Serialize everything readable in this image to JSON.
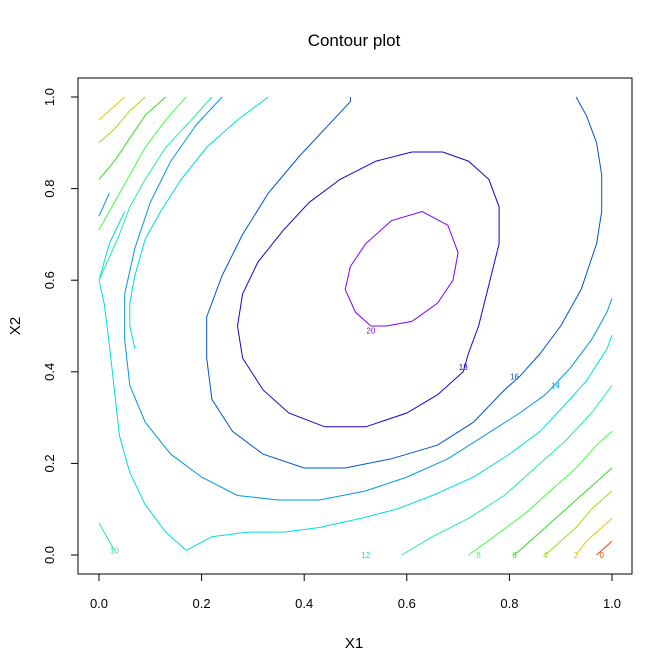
{
  "chart_data": {
    "type": "contour",
    "title": "Contour plot",
    "xlabel": "X1",
    "ylabel": "X2",
    "xlim": [
      0,
      1
    ],
    "ylim": [
      0,
      1
    ],
    "x_ticks": [
      "0.0",
      "0.2",
      "0.4",
      "0.6",
      "0.8",
      "1.0"
    ],
    "y_ticks": [
      "0.0",
      "0.2",
      "0.4",
      "0.6",
      "0.8",
      "1.0"
    ],
    "grid": false,
    "legend": "none",
    "function_note": "levels of a quadratic surface peaking near (0.6, 0.62)",
    "levels": [
      {
        "level": 20,
        "label": "20",
        "color": "#8000FF",
        "segments": [
          [
            [
              0.53,
              0.5
            ],
            [
              0.5,
              0.53
            ],
            [
              0.48,
              0.58
            ],
            [
              0.49,
              0.63
            ],
            [
              0.52,
              0.68
            ],
            [
              0.57,
              0.73
            ],
            [
              0.63,
              0.75
            ],
            [
              0.68,
              0.72
            ],
            [
              0.7,
              0.66
            ],
            [
              0.69,
              0.6
            ],
            [
              0.66,
              0.55
            ],
            [
              0.61,
              0.51
            ],
            [
              0.56,
              0.5
            ],
            [
              0.53,
              0.5
            ]
          ]
        ],
        "label_pos": [
          0.53,
          0.49
        ]
      },
      {
        "level": 18,
        "label": "18",
        "color": "#1E00CC",
        "segments": [
          [
            [
              0.71,
              0.4
            ],
            [
              0.66,
              0.35
            ],
            [
              0.6,
              0.31
            ],
            [
              0.52,
              0.28
            ],
            [
              0.44,
              0.28
            ],
            [
              0.37,
              0.31
            ],
            [
              0.32,
              0.36
            ],
            [
              0.28,
              0.43
            ],
            [
              0.27,
              0.5
            ],
            [
              0.28,
              0.57
            ],
            [
              0.31,
              0.64
            ],
            [
              0.36,
              0.71
            ],
            [
              0.41,
              0.77
            ],
            [
              0.47,
              0.82
            ],
            [
              0.54,
              0.86
            ],
            [
              0.61,
              0.88
            ],
            [
              0.67,
              0.88
            ],
            [
              0.72,
              0.86
            ],
            [
              0.76,
              0.82
            ],
            [
              0.78,
              0.76
            ],
            [
              0.78,
              0.68
            ],
            [
              0.76,
              0.59
            ],
            [
              0.74,
              0.5
            ],
            [
              0.72,
              0.44
            ],
            [
              0.71,
              0.4
            ]
          ]
        ],
        "label_pos": [
          0.71,
          0.41
        ]
      },
      {
        "level": 16,
        "label": "16",
        "color": "#0055CC",
        "segments": [
          [
            [
              0.79,
              0.36
            ],
            [
              0.73,
              0.29
            ],
            [
              0.66,
              0.24
            ],
            [
              0.57,
              0.21
            ],
            [
              0.48,
              0.19
            ],
            [
              0.4,
              0.19
            ],
            [
              0.32,
              0.22
            ],
            [
              0.26,
              0.27
            ],
            [
              0.22,
              0.34
            ],
            [
              0.21,
              0.43
            ],
            [
              0.21,
              0.52
            ],
            [
              0.24,
              0.61
            ],
            [
              0.28,
              0.7
            ],
            [
              0.33,
              0.79
            ],
            [
              0.39,
              0.87
            ],
            [
              0.44,
              0.93
            ],
            [
              0.49,
              0.99
            ],
            [
              0.49,
              1.0
            ]
          ],
          [
            [
              0.93,
              1.0
            ],
            [
              0.95,
              0.96
            ],
            [
              0.97,
              0.9
            ],
            [
              0.98,
              0.83
            ],
            [
              0.98,
              0.75
            ],
            [
              0.97,
              0.68
            ],
            [
              0.94,
              0.58
            ],
            [
              0.9,
              0.5
            ],
            [
              0.86,
              0.44
            ],
            [
              0.82,
              0.39
            ],
            [
              0.79,
              0.36
            ]
          ]
        ],
        "label_pos": [
          0.81,
          0.39
        ]
      },
      {
        "level": 14,
        "label": "14",
        "color": "#0099DD",
        "segments": [
          [
            [
              0.0,
              0.74
            ],
            [
              0.02,
              0.79
            ]
          ],
          [
            [
              0.24,
              1.0
            ],
            [
              0.19,
              0.94
            ],
            [
              0.14,
              0.86
            ],
            [
              0.1,
              0.77
            ],
            [
              0.07,
              0.67
            ],
            [
              0.05,
              0.57
            ],
            [
              0.05,
              0.47
            ],
            [
              0.06,
              0.37
            ],
            [
              0.09,
              0.29
            ],
            [
              0.14,
              0.22
            ],
            [
              0.2,
              0.17
            ],
            [
              0.27,
              0.13
            ],
            [
              0.35,
              0.12
            ],
            [
              0.43,
              0.12
            ],
            [
              0.52,
              0.14
            ],
            [
              0.6,
              0.17
            ],
            [
              0.68,
              0.21
            ],
            [
              0.75,
              0.26
            ],
            [
              0.82,
              0.31
            ],
            [
              0.87,
              0.35
            ],
            [
              0.92,
              0.41
            ],
            [
              0.96,
              0.47
            ],
            [
              0.99,
              0.53
            ],
            [
              1.0,
              0.56
            ]
          ]
        ],
        "label_pos": [
          0.89,
          0.37
        ]
      },
      {
        "level": 12,
        "label": "12",
        "color": "#00DDDD",
        "segments": [
          [
            [
              0.33,
              1.0
            ],
            [
              0.27,
              0.95
            ],
            [
              0.21,
              0.89
            ],
            [
              0.16,
              0.82
            ],
            [
              0.12,
              0.75
            ],
            [
              0.09,
              0.69
            ],
            [
              0.07,
              0.61
            ],
            [
              0.06,
              0.55
            ],
            [
              0.06,
              0.5
            ],
            [
              0.07,
              0.45
            ]
          ],
          [
            [
              0.0,
              0.6
            ],
            [
              0.02,
              0.68
            ],
            [
              0.05,
              0.75
            ]
          ],
          [
            [
              0.17,
              0.01
            ],
            [
              0.13,
              0.05
            ],
            [
              0.09,
              0.11
            ],
            [
              0.06,
              0.18
            ],
            [
              0.04,
              0.26
            ],
            [
              0.03,
              0.36
            ],
            [
              0.02,
              0.46
            ],
            [
              0.01,
              0.55
            ],
            [
              0.0,
              0.6
            ]
          ],
          [
            [
              0.17,
              0.01
            ],
            [
              0.22,
              0.04
            ],
            [
              0.29,
              0.05
            ],
            [
              0.36,
              0.05
            ],
            [
              0.43,
              0.06
            ],
            [
              0.51,
              0.08
            ],
            [
              0.58,
              0.1
            ],
            [
              0.65,
              0.13
            ],
            [
              0.73,
              0.17
            ],
            [
              0.8,
              0.22
            ],
            [
              0.86,
              0.27
            ],
            [
              0.91,
              0.33
            ],
            [
              0.95,
              0.38
            ],
            [
              0.99,
              0.45
            ],
            [
              1.0,
              0.48
            ]
          ]
        ],
        "label_pos": [
          0.52,
          0.0
        ]
      },
      {
        "level": 10,
        "label": "10",
        "color": "#22EE99",
        "segments": [
          [
            [
              0.0,
              0.07
            ],
            [
              0.02,
              0.03
            ],
            [
              0.03,
              0.01
            ]
          ],
          [
            [
              0.22,
              1.0
            ],
            [
              0.18,
              0.95
            ],
            [
              0.13,
              0.89
            ],
            [
              0.09,
              0.82
            ],
            [
              0.06,
              0.76
            ],
            [
              0.04,
              0.7
            ],
            [
              0.02,
              0.65
            ],
            [
              0.0,
              0.6
            ]
          ],
          [
            [
              0.59,
              0.0
            ],
            [
              0.65,
              0.04
            ],
            [
              0.72,
              0.08
            ],
            [
              0.79,
              0.13
            ],
            [
              0.85,
              0.19
            ],
            [
              0.91,
              0.25
            ],
            [
              0.96,
              0.31
            ],
            [
              1.0,
              0.37
            ]
          ]
        ],
        "label_pos": [
          0.03,
          0.01
        ]
      },
      {
        "level": 8,
        "label": "8",
        "color": "#44FF44",
        "segments": [
          [
            [
              0.17,
              1.0
            ],
            [
              0.13,
              0.95
            ],
            [
              0.09,
              0.89
            ],
            [
              0.06,
              0.83
            ],
            [
              0.03,
              0.77
            ],
            [
              0.0,
              0.71
            ]
          ],
          [
            [
              0.72,
              0.0
            ],
            [
              0.77,
              0.04
            ],
            [
              0.83,
              0.09
            ],
            [
              0.88,
              0.14
            ],
            [
              0.93,
              0.19
            ],
            [
              0.97,
              0.24
            ],
            [
              1.0,
              0.27
            ]
          ]
        ],
        "label_pos": [
          0.74,
          0.0
        ]
      },
      {
        "level": 6,
        "label": "6",
        "color": "#33DD22",
        "segments": [
          [
            [
              0.13,
              1.0
            ],
            [
              0.09,
              0.96
            ],
            [
              0.06,
              0.91
            ],
            [
              0.03,
              0.86
            ],
            [
              0.0,
              0.82
            ]
          ],
          [
            [
              0.81,
              0.0
            ],
            [
              0.85,
              0.04
            ],
            [
              0.89,
              0.08
            ],
            [
              0.93,
              0.12
            ],
            [
              0.97,
              0.16
            ],
            [
              1.0,
              0.19
            ]
          ]
        ],
        "label_pos": [
          0.81,
          0.0
        ]
      },
      {
        "level": 4,
        "label": "4",
        "color": "#99DD22",
        "segments": [
          [
            [
              0.09,
              1.0
            ],
            [
              0.06,
              0.97
            ],
            [
              0.03,
              0.93
            ],
            [
              0.0,
              0.9
            ]
          ],
          [
            [
              0.87,
              0.0
            ],
            [
              0.9,
              0.03
            ],
            [
              0.93,
              0.06
            ],
            [
              0.96,
              0.1
            ],
            [
              1.0,
              0.14
            ]
          ]
        ],
        "label_pos": [
          0.87,
          0.0
        ]
      },
      {
        "level": 2,
        "label": "2",
        "color": "#DDCC00",
        "segments": [
          [
            [
              0.05,
              1.0
            ],
            [
              0.02,
              0.97
            ],
            [
              0.0,
              0.95
            ]
          ],
          [
            [
              0.93,
              0.0
            ],
            [
              0.95,
              0.03
            ],
            [
              0.97,
              0.05
            ],
            [
              1.0,
              0.08
            ]
          ]
        ],
        "label_pos": [
          0.93,
          0.0
        ]
      },
      {
        "level": 0,
        "label": "0",
        "color": "#EE4400",
        "segments": [
          [
            [
              0.97,
              0.0
            ],
            [
              0.99,
              0.02
            ],
            [
              1.0,
              0.03
            ]
          ]
        ],
        "label_pos": [
          0.98,
          0.0
        ]
      }
    ]
  }
}
